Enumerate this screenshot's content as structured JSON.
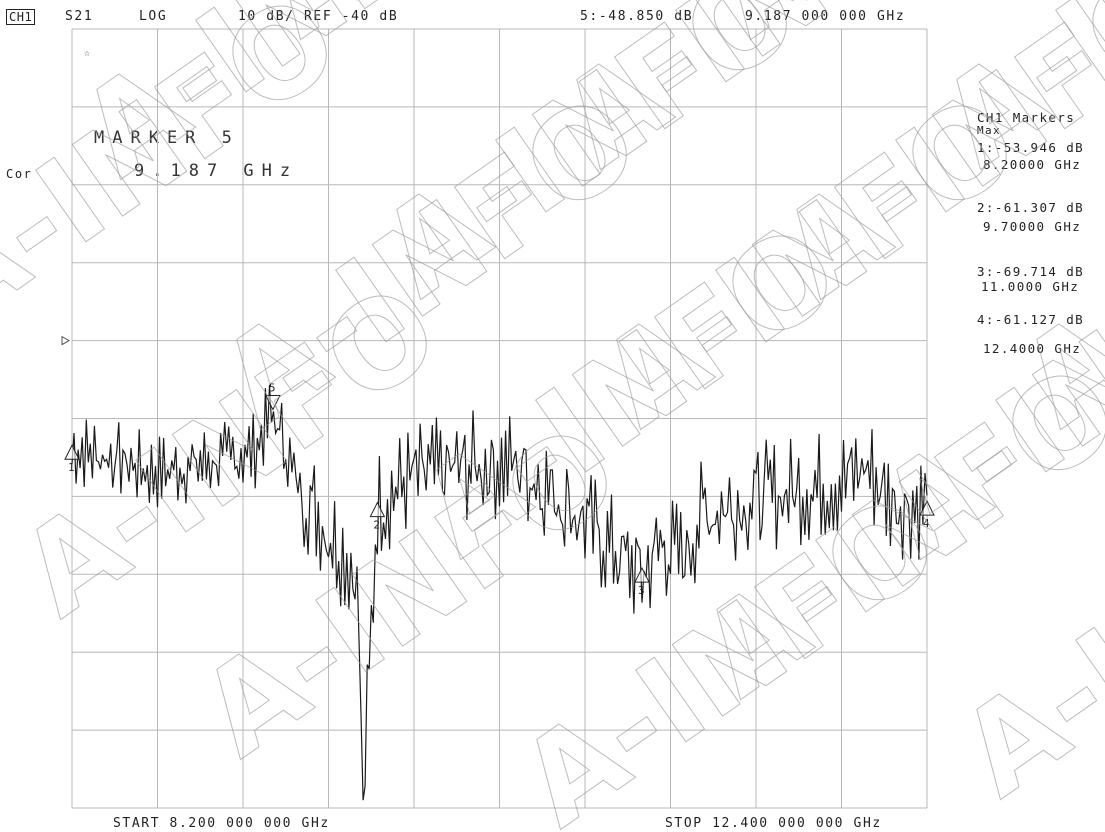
{
  "header": {
    "channel": "CH1",
    "param": "S21",
    "format": "LOG",
    "scale": "10 dB/ REF -40 dB",
    "active_marker_readout": "5:-48.850 dB",
    "active_marker_freq": "9.187 000 000 GHz"
  },
  "left_labels": {
    "cor": "Cor",
    "star": "☆"
  },
  "marker_box": {
    "line1": "MARKER 5",
    "line2": "9.187 GHz"
  },
  "footer": {
    "start": "START 8.200 000 000 GHz",
    "stop": "STOP 12.400 000 000 GHz"
  },
  "marker_table": {
    "title": "CH1 Markers",
    "subtitle": "Max",
    "entries": [
      {
        "id": "1",
        "value": "1:-53.946 dB",
        "freq": "8.20000 GHz"
      },
      {
        "id": "2",
        "value": "2:-61.307 dB",
        "freq": "9.70000 GHz"
      },
      {
        "id": "3",
        "value": "3:-69.714 dB",
        "freq": "11.0000 GHz"
      },
      {
        "id": "4",
        "value": "4:-61.127 dB",
        "freq": "12.4000 GHz"
      }
    ]
  },
  "watermark": "A-INFO",
  "colors": {
    "grid": "#b8b8b8",
    "trace": "#1a1a1a",
    "text": "#222222",
    "watermark": "#9a9a9a"
  },
  "chart_data": {
    "type": "line",
    "title": "",
    "xlabel": "",
    "ylabel": "",
    "xlim": [
      8.2,
      12.4
    ],
    "ylim": [
      -100,
      0
    ],
    "reference_level": -40,
    "grid": true,
    "seed": 7,
    "series": [
      {
        "x": [
          8.2,
          8.4,
          8.6,
          8.8,
          9.0,
          9.1,
          9.187,
          9.3,
          9.45,
          9.6,
          9.63,
          9.7,
          9.85,
          10.0,
          10.2,
          10.4,
          10.6,
          10.75,
          10.9,
          11.0,
          11.1,
          11.2,
          11.3,
          11.45,
          11.6,
          11.8,
          12.0,
          12.1,
          12.2,
          12.3,
          12.4
        ],
        "y": [
          -54,
          -55,
          -57,
          -56,
          -55,
          -54,
          -48.85,
          -58,
          -64,
          -70,
          -99,
          -61,
          -58,
          -57,
          -56,
          -56,
          -60,
          -64,
          -68,
          -70,
          -66,
          -68,
          -62,
          -61,
          -60,
          -59,
          -58,
          -56,
          -60,
          -61,
          -61
        ]
      }
    ],
    "markers": [
      {
        "id": "1",
        "x": 8.2,
        "y": -53.946
      },
      {
        "id": "2",
        "x": 9.7,
        "y": -61.307
      },
      {
        "id": "3",
        "x": 11.0,
        "y": -69.714
      },
      {
        "id": "4",
        "x": 12.4,
        "y": -61.127
      },
      {
        "id": "5",
        "x": 9.187,
        "y": -48.85
      }
    ]
  }
}
